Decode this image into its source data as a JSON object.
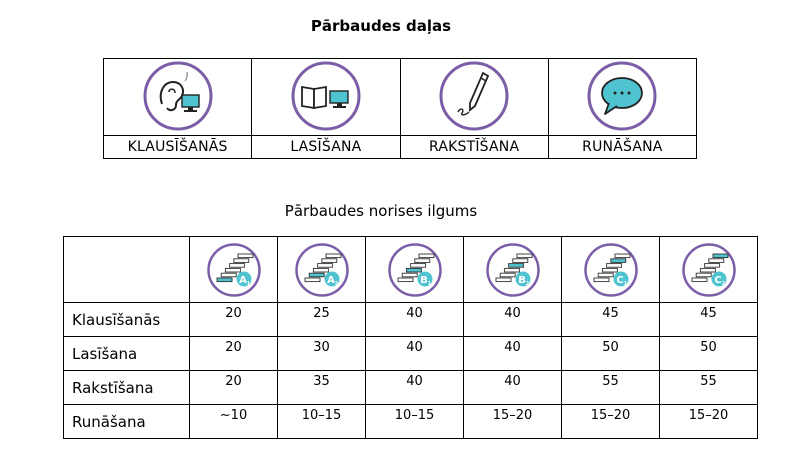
{
  "sections": {
    "title": "Pārbaudes daļas",
    "parts": [
      {
        "label": "KLAUSĪŠANĀS",
        "icon": "ear-computer-icon"
      },
      {
        "label": "LASĪŠANA",
        "icon": "book-computer-icon"
      },
      {
        "label": "RAKSTĪŠANA",
        "icon": "pen-icon"
      },
      {
        "label": "RUNĀŠANA",
        "icon": "speech-bubble-icon"
      }
    ]
  },
  "duration": {
    "title": "Pārbaudes norises ilgums",
    "levels": [
      {
        "code": "A",
        "sub": "1",
        "icon": "stairs-level-icon"
      },
      {
        "code": "A",
        "sub": "2",
        "icon": "stairs-level-icon"
      },
      {
        "code": "B",
        "sub": "1",
        "icon": "stairs-level-icon"
      },
      {
        "code": "B",
        "sub": "2",
        "icon": "stairs-level-icon"
      },
      {
        "code": "C",
        "sub": "1",
        "icon": "stairs-level-icon"
      },
      {
        "code": "C",
        "sub": "2",
        "icon": "stairs-level-icon"
      }
    ],
    "rows": [
      {
        "label": "Klausīšanās",
        "values": [
          "20",
          "25",
          "40",
          "40",
          "45",
          "45"
        ]
      },
      {
        "label": "Lasīšana",
        "values": [
          "20",
          "30",
          "40",
          "40",
          "50",
          "50"
        ]
      },
      {
        "label": "Rakstīšana",
        "values": [
          "20",
          "35",
          "40",
          "40",
          "55",
          "55"
        ]
      },
      {
        "label": "Runāšana",
        "values": [
          "~10",
          "10–15",
          "10–15",
          "15–20",
          "15–20",
          "15–20"
        ]
      }
    ]
  },
  "colors": {
    "ring": "#7b5ea7",
    "accent": "#4fc3d0"
  }
}
